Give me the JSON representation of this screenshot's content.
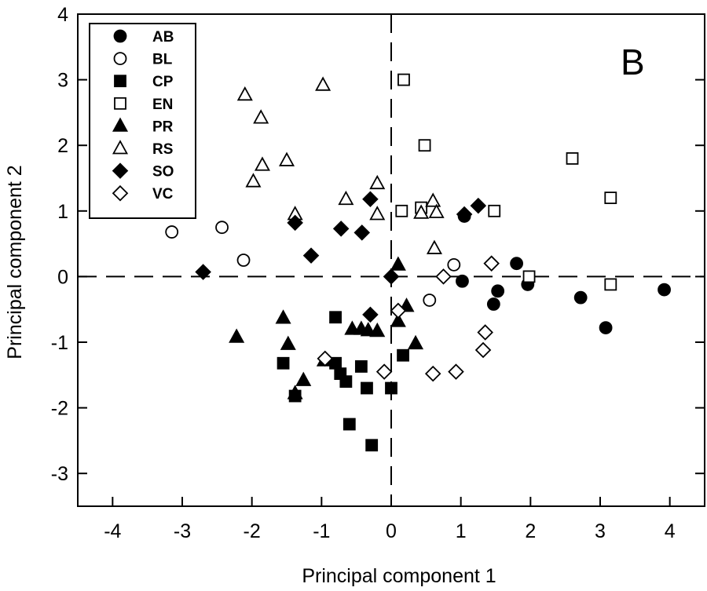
{
  "chart_data": {
    "type": "scatter",
    "panel_label": "B",
    "xlabel": "Principal component 1",
    "ylabel": "Principal component 2",
    "xlim": [
      -4.5,
      4.5
    ],
    "ylim": [
      -3.5,
      4
    ],
    "xticks": [
      -4,
      -3,
      -2,
      -1,
      0,
      1,
      2,
      3,
      4
    ],
    "yticks": [
      -3,
      -2,
      -1,
      0,
      1,
      2,
      3,
      4
    ],
    "reference_lines": {
      "x": 0,
      "y": 0,
      "style": "dashed"
    },
    "legend_position": "top-left",
    "series": [
      {
        "name": "AB",
        "marker": "circle",
        "filled": true,
        "points": [
          [
            1.05,
            0.92
          ],
          [
            1.02,
            -0.07
          ],
          [
            1.53,
            -0.22
          ],
          [
            1.47,
            -0.42
          ],
          [
            1.8,
            0.2
          ],
          [
            1.96,
            -0.12
          ],
          [
            2.72,
            -0.32
          ],
          [
            3.08,
            -0.78
          ],
          [
            3.92,
            -0.2
          ]
        ]
      },
      {
        "name": "BL",
        "marker": "circle",
        "filled": false,
        "points": [
          [
            -3.15,
            0.68
          ],
          [
            -2.43,
            0.75
          ],
          [
            -2.12,
            0.25
          ],
          [
            0.55,
            -0.36
          ],
          [
            0.9,
            0.18
          ]
        ]
      },
      {
        "name": "CP",
        "marker": "square",
        "filled": true,
        "points": [
          [
            -1.55,
            -1.32
          ],
          [
            -1.38,
            -1.82
          ],
          [
            -0.8,
            -0.62
          ],
          [
            -0.8,
            -1.32
          ],
          [
            -0.73,
            -1.48
          ],
          [
            -0.65,
            -1.6
          ],
          [
            -0.6,
            -2.25
          ],
          [
            -0.43,
            -1.37
          ],
          [
            -0.35,
            -1.7
          ],
          [
            -0.28,
            -2.57
          ],
          [
            0,
            -1.7
          ],
          [
            0.17,
            -1.2
          ]
        ]
      },
      {
        "name": "EN",
        "marker": "square",
        "filled": false,
        "points": [
          [
            0.18,
            3.0
          ],
          [
            0.48,
            2.0
          ],
          [
            0.15,
            1.0
          ],
          [
            0.43,
            1.05
          ],
          [
            1.48,
            1.0
          ],
          [
            1.98,
            0.0
          ],
          [
            2.6,
            1.8
          ],
          [
            3.15,
            1.2
          ],
          [
            3.15,
            -0.12
          ]
        ]
      },
      {
        "name": "PR",
        "marker": "triangle",
        "filled": true,
        "points": [
          [
            -2.22,
            -0.92
          ],
          [
            -1.55,
            -0.63
          ],
          [
            -1.48,
            -1.03
          ],
          [
            -1.38,
            -1.78
          ],
          [
            -1.26,
            -1.58
          ],
          [
            -0.96,
            -1.28
          ],
          [
            -0.56,
            -0.8
          ],
          [
            -0.43,
            -0.8
          ],
          [
            -0.33,
            -0.82
          ],
          [
            -0.2,
            -0.83
          ],
          [
            0.1,
            0.18
          ],
          [
            0.1,
            -0.68
          ],
          [
            0.22,
            -0.45
          ],
          [
            0.35,
            -1.02
          ]
        ]
      },
      {
        "name": "RS",
        "marker": "triangle",
        "filled": false,
        "points": [
          [
            -2.1,
            2.77
          ],
          [
            -1.87,
            2.42
          ],
          [
            -1.85,
            1.7
          ],
          [
            -1.98,
            1.45
          ],
          [
            -1.5,
            1.77
          ],
          [
            -1.38,
            0.95
          ],
          [
            -0.98,
            2.92
          ],
          [
            -0.65,
            1.18
          ],
          [
            -0.2,
            1.42
          ],
          [
            -0.2,
            0.95
          ],
          [
            0.43,
            0.97
          ],
          [
            0.6,
            1.15
          ],
          [
            0.65,
            0.98
          ],
          [
            0.62,
            0.43
          ]
        ]
      },
      {
        "name": "SO",
        "marker": "diamond",
        "filled": true,
        "points": [
          [
            -2.7,
            0.07
          ],
          [
            -1.38,
            0.82
          ],
          [
            -1.15,
            0.32
          ],
          [
            -0.72,
            0.73
          ],
          [
            -0.42,
            0.67
          ],
          [
            -0.3,
            1.18
          ],
          [
            -0.3,
            -0.58
          ],
          [
            0.0,
            0.0
          ],
          [
            1.05,
            0.95
          ],
          [
            1.25,
            1.08
          ]
        ]
      },
      {
        "name": "VC",
        "marker": "diamond",
        "filled": false,
        "points": [
          [
            -0.95,
            -1.25
          ],
          [
            -0.1,
            -1.45
          ],
          [
            0.1,
            -0.52
          ],
          [
            0.75,
            0.0
          ],
          [
            1.44,
            0.2
          ],
          [
            1.35,
            -0.85
          ],
          [
            1.32,
            -1.12
          ],
          [
            0.6,
            -1.48
          ],
          [
            0.93,
            -1.45
          ]
        ]
      }
    ]
  }
}
